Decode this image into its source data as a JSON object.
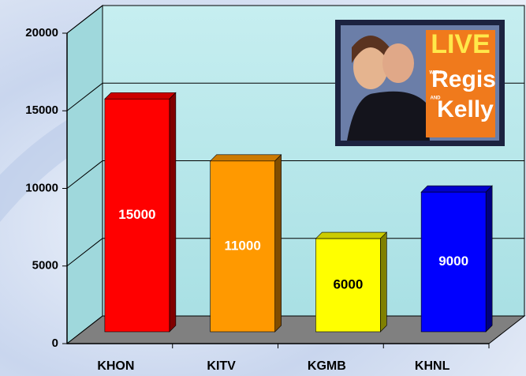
{
  "chart_data": {
    "type": "bar3d",
    "categories": [
      "KHON",
      "KITV",
      "KGMB",
      "KHNL"
    ],
    "series": [
      {
        "values": [
          15000,
          11000,
          6000,
          9000
        ],
        "colors": [
          "#ff0000",
          "#ff9900",
          "#ffff00",
          "#0000ff"
        ]
      }
    ],
    "ylim": [
      0,
      20000
    ],
    "yticks": [
      0,
      5000,
      10000,
      15000,
      20000
    ],
    "grid": true,
    "inset": {
      "lines": [
        "LIVE",
        "WITH",
        "Regis",
        "AND",
        "Kelly"
      ]
    }
  }
}
